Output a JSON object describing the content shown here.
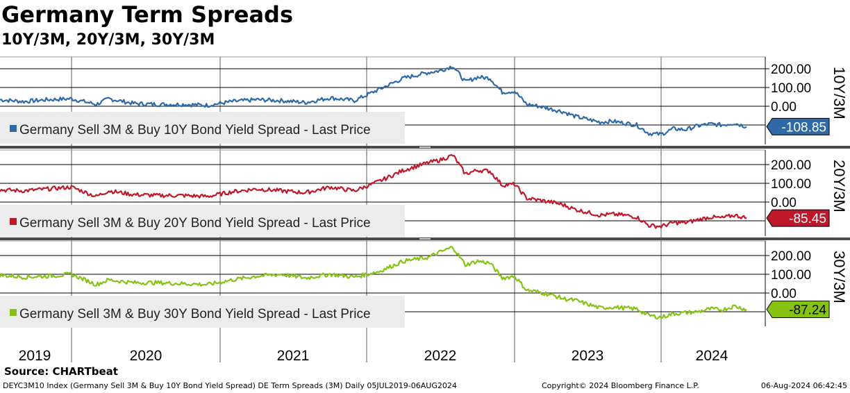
{
  "title": "Germany Term Spreads",
  "subtitle": "10Y/3M, 20Y/3M, 30Y/3M",
  "source": "Source: CHARTbeat",
  "footer": {
    "left": "DEYC3M10 Index (Germany Sell 3M & Buy 10Y Bond Yield Spread) DE Term Spreads (3M)  Daily 05JUL2019-06AUG2024",
    "center": "Copyright© 2024 Bloomberg Finance L.P.",
    "right": "06-Aug-2024 06:42:45"
  },
  "colors": {
    "ten_year": "#2e6aa8",
    "twenty_year": "#c0182b",
    "thirty_year": "#86c212",
    "legend_bg": "#ececec",
    "grid": "#000000",
    "divider": "#4a4a4a"
  },
  "chart_data": [
    {
      "type": "line",
      "axis_title": "10Y/3M",
      "legend": "Germany Sell 3M & Buy 10Y Bond Yield Spread - Last Price",
      "last_value": "-108.85",
      "y_ticks": [
        "200.00",
        "100.00",
        "0.00"
      ],
      "ylim": [
        -160,
        230
      ],
      "x_labels": [
        "2019",
        "2020",
        "2021",
        "2022",
        "2023",
        "2024"
      ],
      "series": [
        {
          "points": [
            [
              "2019-07",
              35
            ],
            [
              "2019-09",
              25
            ],
            [
              "2019-11",
              35
            ],
            [
              "2020-01",
              40
            ],
            [
              "2020-03",
              10
            ],
            [
              "2020-04",
              40
            ],
            [
              "2020-06",
              15
            ],
            [
              "2020-08",
              10
            ],
            [
              "2020-10",
              10
            ],
            [
              "2020-12",
              5
            ],
            [
              "2021-02",
              25
            ],
            [
              "2021-04",
              35
            ],
            [
              "2021-06",
              30
            ],
            [
              "2021-08",
              20
            ],
            [
              "2021-10",
              45
            ],
            [
              "2021-12",
              30
            ],
            [
              "2022-02",
              90
            ],
            [
              "2022-04",
              150
            ],
            [
              "2022-06",
              180
            ],
            [
              "2022-07",
              190
            ],
            [
              "2022-08",
              215
            ],
            [
              "2022-09",
              130
            ],
            [
              "2022-10",
              155
            ],
            [
              "2022-11",
              150
            ],
            [
              "2022-12",
              75
            ],
            [
              "2023-01",
              80
            ],
            [
              "2023-02",
              10
            ],
            [
              "2023-03",
              0
            ],
            [
              "2023-04",
              -15
            ],
            [
              "2023-05",
              -30
            ],
            [
              "2023-06",
              -55
            ],
            [
              "2023-07",
              -70
            ],
            [
              "2023-08",
              -85
            ],
            [
              "2023-09",
              -80
            ],
            [
              "2023-10",
              -90
            ],
            [
              "2023-11",
              -100
            ],
            [
              "2023-12",
              -145
            ],
            [
              "2024-01",
              -150
            ],
            [
              "2024-02",
              -120
            ],
            [
              "2024-03",
              -125
            ],
            [
              "2024-04",
              -105
            ],
            [
              "2024-05",
              -95
            ],
            [
              "2024-06",
              -100
            ],
            [
              "2024-07",
              -90
            ],
            [
              "2024-08",
              -108.85
            ]
          ]
        }
      ]
    },
    {
      "type": "line",
      "axis_title": "20Y/3M",
      "legend": "Germany Sell 3M & Buy 20Y Bond Yield Spread - Last Price",
      "last_value": "-85.45",
      "y_ticks": [
        "200.00",
        "100.00",
        "0.00"
      ],
      "ylim": [
        -150,
        270
      ],
      "x_labels": [
        "2019",
        "2020",
        "2021",
        "2022",
        "2023",
        "2024"
      ],
      "series": [
        {
          "points": [
            [
              "2019-07",
              65
            ],
            [
              "2019-09",
              60
            ],
            [
              "2019-11",
              70
            ],
            [
              "2020-01",
              80
            ],
            [
              "2020-03",
              30
            ],
            [
              "2020-04",
              60
            ],
            [
              "2020-06",
              40
            ],
            [
              "2020-08",
              35
            ],
            [
              "2020-10",
              35
            ],
            [
              "2020-12",
              30
            ],
            [
              "2021-02",
              55
            ],
            [
              "2021-04",
              70
            ],
            [
              "2021-06",
              60
            ],
            [
              "2021-08",
              50
            ],
            [
              "2021-10",
              80
            ],
            [
              "2021-12",
              60
            ],
            [
              "2022-02",
              110
            ],
            [
              "2022-04",
              170
            ],
            [
              "2022-06",
              210
            ],
            [
              "2022-07",
              225
            ],
            [
              "2022-08",
              250
            ],
            [
              "2022-09",
              150
            ],
            [
              "2022-10",
              170
            ],
            [
              "2022-11",
              165
            ],
            [
              "2022-12",
              90
            ],
            [
              "2023-01",
              95
            ],
            [
              "2023-02",
              20
            ],
            [
              "2023-03",
              10
            ],
            [
              "2023-04",
              0
            ],
            [
              "2023-05",
              -15
            ],
            [
              "2023-06",
              -40
            ],
            [
              "2023-07",
              -55
            ],
            [
              "2023-08",
              -70
            ],
            [
              "2023-09",
              -65
            ],
            [
              "2023-10",
              -70
            ],
            [
              "2023-11",
              -80
            ],
            [
              "2023-12",
              -125
            ],
            [
              "2024-01",
              -130
            ],
            [
              "2024-02",
              -110
            ],
            [
              "2024-03",
              -110
            ],
            [
              "2024-04",
              -95
            ],
            [
              "2024-05",
              -80
            ],
            [
              "2024-06",
              -85
            ],
            [
              "2024-07",
              -70
            ],
            [
              "2024-08",
              -85.45
            ]
          ]
        }
      ]
    },
    {
      "type": "line",
      "axis_title": "30Y/3M",
      "legend": "Germany Sell 3M & Buy 30Y Bond Yield Spread - Last Price",
      "last_value": "-87.24",
      "y_ticks": [
        "200.00",
        "100.00",
        "0.00"
      ],
      "ylim": [
        -150,
        260
      ],
      "x_labels": [
        "2019",
        "2020",
        "2021",
        "2022",
        "2023",
        "2024"
      ],
      "series": [
        {
          "points": [
            [
              "2019-07",
              95
            ],
            [
              "2019-09",
              85
            ],
            [
              "2019-11",
              90
            ],
            [
              "2020-01",
              100
            ],
            [
              "2020-03",
              45
            ],
            [
              "2020-04",
              70
            ],
            [
              "2020-06",
              55
            ],
            [
              "2020-08",
              55
            ],
            [
              "2020-10",
              50
            ],
            [
              "2020-12",
              45
            ],
            [
              "2021-02",
              70
            ],
            [
              "2021-04",
              90
            ],
            [
              "2021-06",
              100
            ],
            [
              "2021-08",
              80
            ],
            [
              "2021-10",
              100
            ],
            [
              "2021-12",
              85
            ],
            [
              "2022-02",
              115
            ],
            [
              "2022-04",
              170
            ],
            [
              "2022-06",
              190
            ],
            [
              "2022-07",
              220
            ],
            [
              "2022-08",
              245
            ],
            [
              "2022-09",
              150
            ],
            [
              "2022-10",
              170
            ],
            [
              "2022-11",
              160
            ],
            [
              "2022-12",
              80
            ],
            [
              "2023-01",
              90
            ],
            [
              "2023-02",
              15
            ],
            [
              "2023-03",
              5
            ],
            [
              "2023-04",
              -10
            ],
            [
              "2023-05",
              -30
            ],
            [
              "2023-06",
              -40
            ],
            [
              "2023-07",
              -60
            ],
            [
              "2023-08",
              -80
            ],
            [
              "2023-09",
              -75
            ],
            [
              "2023-10",
              -80
            ],
            [
              "2023-11",
              -85
            ],
            [
              "2023-12",
              -120
            ],
            [
              "2024-01",
              -130
            ],
            [
              "2024-02",
              -110
            ],
            [
              "2024-03",
              -105
            ],
            [
              "2024-04",
              -100
            ],
            [
              "2024-05",
              -85
            ],
            [
              "2024-06",
              -90
            ],
            [
              "2024-07",
              -70
            ],
            [
              "2024-08",
              -87.24
            ]
          ]
        }
      ]
    }
  ]
}
